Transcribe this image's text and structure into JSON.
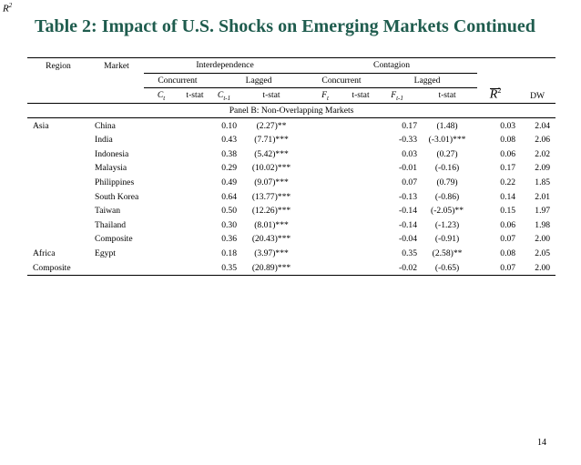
{
  "corner_mark": "R",
  "title": "Table 2: Impact of U.S. Shocks on Emerging Markets Continued",
  "table": {
    "headers": {
      "region": "Region",
      "market": "Market",
      "interdependence": "Interdependence",
      "contagion": "Contagion",
      "concurrent": "Concurrent",
      "lagged": "Lagged",
      "c_t": "C",
      "c_t_sub": "t",
      "c_tm1": "C",
      "c_tm1_sub": "t-1",
      "f_t": "F",
      "f_t_sub": "t",
      "f_tm1": "F",
      "f_tm1_sub": "t-1",
      "tstat": "t-stat",
      "r2": "R",
      "r2_sup": "2",
      "dw": "DW"
    },
    "panel_label": "Panel B: Non-Overlapping Markets",
    "rows": [
      {
        "region": "Asia",
        "market": "China",
        "c_tm1": "0.10",
        "c_tm1_t": "(2.27)**",
        "f_tm1": "0.17",
        "f_tm1_t": "(1.48)",
        "r2": "0.03",
        "dw": "2.04"
      },
      {
        "region": "",
        "market": "India",
        "c_tm1": "0.43",
        "c_tm1_t": "(7.71)***",
        "f_tm1": "-0.33",
        "f_tm1_t": "(-3.01)***",
        "r2": "0.08",
        "dw": "2.06"
      },
      {
        "region": "",
        "market": "Indonesia",
        "c_tm1": "0.38",
        "c_tm1_t": "(5.42)***",
        "f_tm1": "0.03",
        "f_tm1_t": "(0.27)",
        "r2": "0.06",
        "dw": "2.02"
      },
      {
        "region": "",
        "market": "Malaysia",
        "c_tm1": "0.29",
        "c_tm1_t": "(10.02)***",
        "f_tm1": "-0.01",
        "f_tm1_t": "(-0.16)",
        "r2": "0.17",
        "dw": "2.09"
      },
      {
        "region": "",
        "market": "Philippines",
        "c_tm1": "0.49",
        "c_tm1_t": "(9.07)***",
        "f_tm1": "0.07",
        "f_tm1_t": "(0.79)",
        "r2": "0.22",
        "dw": "1.85"
      },
      {
        "region": "",
        "market": "South Korea",
        "c_tm1": "0.64",
        "c_tm1_t": "(13.77)***",
        "f_tm1": "-0.13",
        "f_tm1_t": "(-0.86)",
        "r2": "0.14",
        "dw": "2.01"
      },
      {
        "region": "",
        "market": "Taiwan",
        "c_tm1": "0.50",
        "c_tm1_t": "(12.26)***",
        "f_tm1": "-0.14",
        "f_tm1_t": "(-2.05)**",
        "r2": "0.15",
        "dw": "1.97"
      },
      {
        "region": "",
        "market": "Thailand",
        "c_tm1": "0.30",
        "c_tm1_t": "(8.01)***",
        "f_tm1": "-0.14",
        "f_tm1_t": "(-1.23)",
        "r2": "0.06",
        "dw": "1.98"
      },
      {
        "region": "",
        "market": "Composite",
        "c_tm1": "0.36",
        "c_tm1_t": "(20.43)***",
        "f_tm1": "-0.04",
        "f_tm1_t": "(-0.91)",
        "r2": "0.07",
        "dw": "2.00"
      },
      {
        "region": "Africa",
        "market": "Egypt",
        "c_tm1": "0.18",
        "c_tm1_t": "(3.97)***",
        "f_tm1": "0.35",
        "f_tm1_t": "(2.58)**",
        "r2": "0.08",
        "dw": "2.05"
      },
      {
        "region": "Composite",
        "market": "",
        "c_tm1": "0.35",
        "c_tm1_t": "(20.89)***",
        "f_tm1": "-0.02",
        "f_tm1_t": "(-0.65)",
        "r2": "0.07",
        "dw": "2.00"
      }
    ]
  },
  "page_number": "14"
}
